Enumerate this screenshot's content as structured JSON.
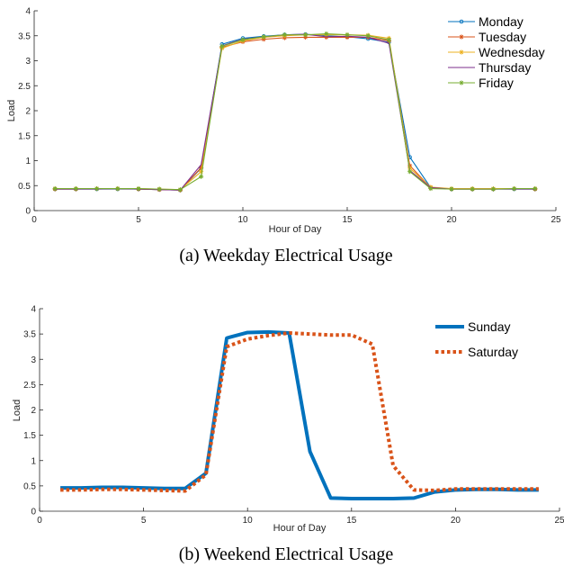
{
  "chart_data": [
    {
      "type": "line",
      "caption": "(a) Weekday Electrical Usage",
      "xlabel": "Hour of Day",
      "ylabel": "Load",
      "xlim": [
        0,
        25
      ],
      "ylim": [
        0,
        4
      ],
      "xticks": [
        0,
        5,
        10,
        15,
        20,
        25
      ],
      "yticks": [
        0,
        0.5,
        1,
        1.5,
        2,
        2.5,
        3,
        3.5,
        4
      ],
      "ytick_labels": [
        "0",
        "0.5",
        "1",
        "1.5",
        "2",
        "2.5",
        "3",
        "3.5",
        "4"
      ],
      "legend_position": "top-right",
      "x": [
        1,
        2,
        3,
        4,
        5,
        6,
        7,
        8,
        9,
        10,
        11,
        12,
        13,
        14,
        15,
        16,
        17,
        18,
        19,
        20,
        21,
        22,
        23,
        24
      ],
      "series": [
        {
          "name": "Monday",
          "color": "#0072BD",
          "marker": "circle",
          "values": [
            0.43,
            0.43,
            0.43,
            0.43,
            0.43,
            0.42,
            0.41,
            0.85,
            3.33,
            3.45,
            3.49,
            3.52,
            3.53,
            3.5,
            3.48,
            3.44,
            3.37,
            1.07,
            0.46,
            0.43,
            0.43,
            0.43,
            0.43,
            0.43
          ]
        },
        {
          "name": "Tuesday",
          "color": "#D95319",
          "marker": "star",
          "values": [
            0.43,
            0.43,
            0.44,
            0.44,
            0.43,
            0.42,
            0.41,
            0.86,
            3.27,
            3.38,
            3.43,
            3.46,
            3.47,
            3.47,
            3.47,
            3.47,
            3.4,
            0.9,
            0.46,
            0.43,
            0.43,
            0.43,
            0.44,
            0.43
          ]
        },
        {
          "name": "Wednesday",
          "color": "#EDB120",
          "marker": "star",
          "values": [
            0.44,
            0.44,
            0.44,
            0.44,
            0.44,
            0.43,
            0.42,
            0.78,
            3.25,
            3.4,
            3.47,
            3.5,
            3.52,
            3.52,
            3.52,
            3.51,
            3.45,
            0.85,
            0.47,
            0.44,
            0.44,
            0.44,
            0.44,
            0.44
          ]
        },
        {
          "name": "Thursday",
          "color": "#7E2F8E",
          "marker": "none",
          "values": [
            0.43,
            0.43,
            0.43,
            0.44,
            0.43,
            0.42,
            0.41,
            0.92,
            3.3,
            3.43,
            3.48,
            3.52,
            3.53,
            3.48,
            3.49,
            3.47,
            3.35,
            0.8,
            0.46,
            0.43,
            0.43,
            0.43,
            0.43,
            0.43
          ]
        },
        {
          "name": "Friday",
          "color": "#77AC30",
          "marker": "star",
          "values": [
            0.44,
            0.44,
            0.44,
            0.44,
            0.44,
            0.43,
            0.42,
            0.68,
            3.29,
            3.42,
            3.48,
            3.52,
            3.52,
            3.54,
            3.52,
            3.5,
            3.42,
            0.78,
            0.44,
            0.43,
            0.43,
            0.43,
            0.44,
            0.44
          ]
        }
      ]
    },
    {
      "type": "line",
      "caption": "(b) Weekend Electrical Usage",
      "xlabel": "Hour of Day",
      "ylabel": "Load",
      "xlim": [
        0,
        25
      ],
      "ylim": [
        0,
        4
      ],
      "xticks": [
        0,
        5,
        10,
        15,
        20,
        25
      ],
      "yticks": [
        0,
        0.5,
        1,
        1.5,
        2,
        2.5,
        3,
        3.5,
        4
      ],
      "ytick_labels": [
        "0",
        "0.5",
        "1",
        "1.5",
        "2",
        "2.5",
        "3",
        "3.5",
        "4"
      ],
      "legend_position": "top-right",
      "x": [
        1,
        2,
        3,
        4,
        5,
        6,
        7,
        8,
        9,
        10,
        11,
        12,
        13,
        14,
        15,
        16,
        17,
        18,
        19,
        20,
        21,
        22,
        23,
        24
      ],
      "series": [
        {
          "name": "Sunday",
          "color": "#0072BD",
          "style": "solid",
          "values": [
            0.46,
            0.46,
            0.47,
            0.47,
            0.46,
            0.45,
            0.45,
            0.75,
            3.42,
            3.53,
            3.54,
            3.52,
            1.18,
            0.26,
            0.25,
            0.25,
            0.25,
            0.26,
            0.38,
            0.42,
            0.43,
            0.43,
            0.42,
            0.42
          ]
        },
        {
          "name": "Saturday",
          "color": "#D95319",
          "style": "dotted",
          "values": [
            0.42,
            0.42,
            0.43,
            0.43,
            0.42,
            0.41,
            0.4,
            0.72,
            3.25,
            3.4,
            3.47,
            3.52,
            3.5,
            3.48,
            3.48,
            3.3,
            0.9,
            0.42,
            0.41,
            0.44,
            0.44,
            0.44,
            0.44,
            0.44
          ]
        }
      ]
    }
  ]
}
